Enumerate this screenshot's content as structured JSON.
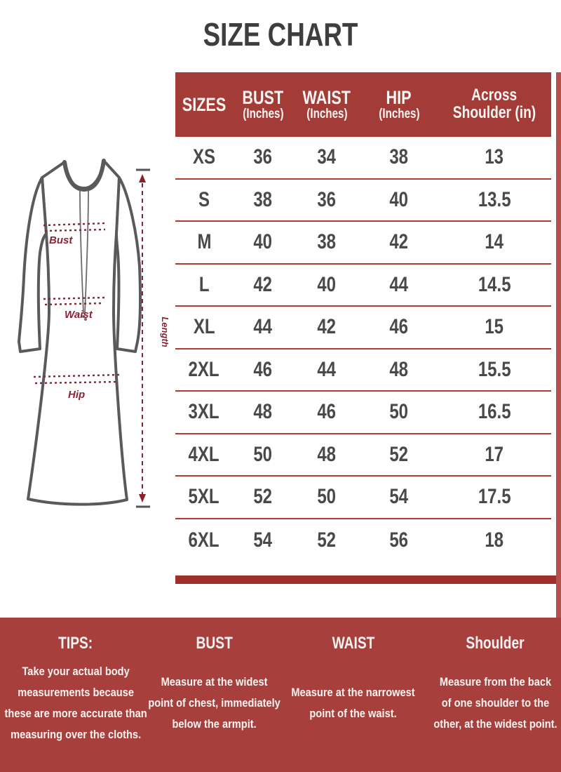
{
  "title": "SIZE CHART",
  "diagram": {
    "bust_label": "Bust",
    "waist_label": "Waist",
    "hip_label": "Hip",
    "length_label": "Length"
  },
  "table": {
    "headers": [
      {
        "line1": "SIZES",
        "line2": ""
      },
      {
        "line1": "BUST",
        "line2": "(Inches)"
      },
      {
        "line1": "WAIST",
        "line2": "(Inches)"
      },
      {
        "line1": "HIP",
        "line2": "(Inches)"
      },
      {
        "line1": "Across",
        "line2": "Shoulder (in)"
      }
    ],
    "rows": [
      [
        "XS",
        "36",
        "34",
        "38",
        "13"
      ],
      [
        "S",
        "38",
        "36",
        "40",
        "13.5"
      ],
      [
        "M",
        "40",
        "38",
        "42",
        "14"
      ],
      [
        "L",
        "42",
        "40",
        "44",
        "14.5"
      ],
      [
        "XL",
        "44",
        "42",
        "46",
        "15"
      ],
      [
        "2XL",
        "46",
        "44",
        "48",
        "15.5"
      ],
      [
        "3XL",
        "48",
        "46",
        "50",
        "16.5"
      ],
      [
        "4XL",
        "50",
        "48",
        "52",
        "17"
      ],
      [
        "5XL",
        "52",
        "50",
        "54",
        "17.5"
      ],
      [
        "6XL",
        "54",
        "52",
        "56",
        "18"
      ]
    ]
  },
  "banner": {
    "sections": [
      {
        "heading": "TIPS:",
        "text": "Take your actual body\nmeasurements because\nthese are more accurate than\nmeasuring over the cloths."
      },
      {
        "heading": "BUST",
        "text": "Measure at the widest\npoint of chest, immediately\nbelow the armpit."
      },
      {
        "heading": "WAIST",
        "text": "Measure at the narrowest\npoint of the waist."
      },
      {
        "heading": "Shoulder",
        "text": "Measure from the back\nof one shoulder to the\nother, at the widest point."
      }
    ]
  },
  "colors": {
    "header_bg": "#a33b36",
    "banner_bg": "#a7403d",
    "separator": "#b13a33",
    "bottom_bar": "#9f2f2a",
    "accent_maroon": "#8d2433",
    "text_dark": "#4b4947"
  }
}
